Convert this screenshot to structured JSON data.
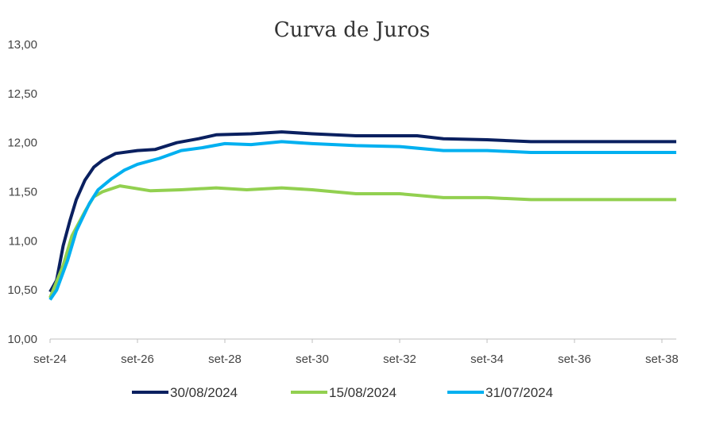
{
  "chart_data": {
    "type": "line",
    "title": "Curva de Juros",
    "xlabel": "",
    "ylabel": "",
    "ylim": [
      10,
      13
    ],
    "yticks": [
      "10,00",
      "10,50",
      "11,00",
      "11,50",
      "12,00",
      "12,50",
      "13,00"
    ],
    "ytick_values": [
      10,
      10.5,
      11,
      11.5,
      12,
      12.5,
      13
    ],
    "xticks": [
      "set-24",
      "set-26",
      "set-28",
      "set-30",
      "set-32",
      "set-34",
      "set-36",
      "set-38"
    ],
    "xtick_values": [
      0,
      2,
      4,
      6,
      8,
      10,
      12,
      14
    ],
    "xlim": [
      0,
      14.33
    ],
    "x_unit": "years since set-24",
    "grid": false,
    "legend_position": "bottom",
    "series": [
      {
        "name": "30/08/2024",
        "color": "#0a2060",
        "x": [
          0,
          0.15,
          0.3,
          0.45,
          0.6,
          0.8,
          1.0,
          1.2,
          1.5,
          2.0,
          2.4,
          2.9,
          3.4,
          3.8,
          4.6,
          5.3,
          6.0,
          7.0,
          8.4,
          9.0,
          10.0,
          11.0,
          14.33
        ],
        "y": [
          10.48,
          10.6,
          10.95,
          11.2,
          11.42,
          11.62,
          11.75,
          11.82,
          11.89,
          11.92,
          11.93,
          12.0,
          12.04,
          12.08,
          12.09,
          12.11,
          12.09,
          12.07,
          12.07,
          12.04,
          12.03,
          12.01,
          12.01
        ]
      },
      {
        "name": "15/08/2024",
        "color": "#92d050",
        "x": [
          0,
          0.3,
          0.5,
          0.8,
          1.0,
          1.2,
          1.6,
          2.3,
          3.0,
          3.8,
          4.5,
          5.3,
          6.0,
          7.0,
          8.0,
          9.0,
          10.0,
          11.0,
          14.33
        ],
        "y": [
          10.42,
          10.75,
          11.05,
          11.3,
          11.45,
          11.5,
          11.56,
          11.51,
          11.52,
          11.54,
          11.52,
          11.54,
          11.52,
          11.48,
          11.48,
          11.44,
          11.44,
          11.42,
          11.42
        ]
      },
      {
        "name": "31/07/2024",
        "color": "#00b0f0",
        "x": [
          0,
          0.15,
          0.4,
          0.6,
          0.9,
          1.1,
          1.4,
          1.7,
          2.0,
          2.5,
          3.0,
          3.5,
          4.0,
          4.6,
          5.3,
          6.0,
          7.0,
          8.0,
          9.0,
          10.0,
          11.0,
          14.33
        ],
        "y": [
          10.4,
          10.5,
          10.8,
          11.1,
          11.38,
          11.52,
          11.63,
          11.72,
          11.78,
          11.84,
          11.92,
          11.95,
          11.99,
          11.98,
          12.01,
          11.99,
          11.97,
          11.96,
          11.92,
          11.92,
          11.9,
          11.9
        ]
      }
    ]
  }
}
